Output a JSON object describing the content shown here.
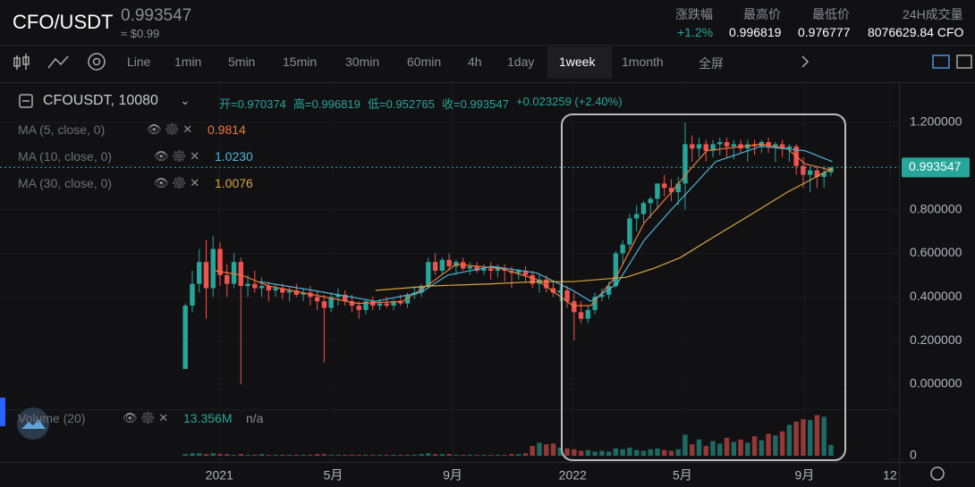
{
  "header": {
    "pair": "CFO/USDT",
    "price": "0.993547",
    "usd": "≈ $0.99",
    "stats": [
      {
        "label": "涨跌幅",
        "value": "+1.2%"
      },
      {
        "label": "最高价",
        "value": "0.996819"
      },
      {
        "label": "最低价",
        "value": "0.976777"
      },
      {
        "label": "24H成交量",
        "value": "8076629.84 CFO"
      }
    ]
  },
  "toolbar": {
    "intervals": [
      "Line",
      "1min",
      "5min",
      "15min",
      "30min",
      "60min",
      "4h",
      "1day",
      "1week",
      "1month",
      "全屏"
    ],
    "active": 8
  },
  "legend": {
    "symbol": "CFOUSDT, 10080",
    "ohlc": [
      "开=0.970374",
      "高=0.996819",
      "低=0.952765",
      "收=0.993547"
    ],
    "change": "+0.023259 (+2.40%)"
  },
  "chart_data": {
    "type": "candlestick",
    "up_color": "#26a69a",
    "down_color": "#ef5350",
    "candles": [
      [
        0.07,
        0.37,
        0.07,
        0.36
      ],
      [
        0.36,
        0.52,
        0.33,
        0.46
      ],
      [
        0.46,
        0.62,
        0.42,
        0.56
      ],
      [
        0.56,
        0.66,
        0.3,
        0.44
      ],
      [
        0.44,
        0.68,
        0.4,
        0.62
      ],
      [
        0.62,
        0.65,
        0.45,
        0.5
      ],
      [
        0.5,
        0.55,
        0.4,
        0.46
      ],
      [
        0.46,
        0.6,
        0.44,
        0.56
      ],
      [
        0.56,
        0.58,
        0.0,
        0.45
      ],
      [
        0.45,
        0.5,
        0.4,
        0.46
      ],
      [
        0.46,
        0.52,
        0.42,
        0.44
      ],
      [
        0.44,
        0.49,
        0.4,
        0.45
      ],
      [
        0.45,
        0.47,
        0.38,
        0.43
      ],
      [
        0.43,
        0.46,
        0.4,
        0.44
      ],
      [
        0.44,
        0.46,
        0.39,
        0.42
      ],
      [
        0.42,
        0.45,
        0.38,
        0.43
      ],
      [
        0.43,
        0.46,
        0.4,
        0.41
      ],
      [
        0.41,
        0.44,
        0.38,
        0.42
      ],
      [
        0.42,
        0.45,
        0.36,
        0.4
      ],
      [
        0.4,
        0.43,
        0.34,
        0.38
      ],
      [
        0.38,
        0.41,
        0.1,
        0.35
      ],
      [
        0.35,
        0.42,
        0.33,
        0.4
      ],
      [
        0.4,
        0.44,
        0.36,
        0.41
      ],
      [
        0.41,
        0.43,
        0.36,
        0.38
      ],
      [
        0.38,
        0.41,
        0.33,
        0.36
      ],
      [
        0.36,
        0.38,
        0.3,
        0.34
      ],
      [
        0.34,
        0.39,
        0.32,
        0.38
      ],
      [
        0.38,
        0.4,
        0.34,
        0.36
      ],
      [
        0.36,
        0.39,
        0.34,
        0.37
      ],
      [
        0.37,
        0.4,
        0.35,
        0.36
      ],
      [
        0.36,
        0.39,
        0.34,
        0.38
      ],
      [
        0.38,
        0.41,
        0.36,
        0.37
      ],
      [
        0.37,
        0.42,
        0.35,
        0.41
      ],
      [
        0.41,
        0.45,
        0.39,
        0.42
      ],
      [
        0.42,
        0.46,
        0.4,
        0.45
      ],
      [
        0.45,
        0.58,
        0.44,
        0.56
      ],
      [
        0.56,
        0.6,
        0.5,
        0.52
      ],
      [
        0.52,
        0.58,
        0.5,
        0.57
      ],
      [
        0.57,
        0.6,
        0.52,
        0.54
      ],
      [
        0.54,
        0.57,
        0.5,
        0.56
      ],
      [
        0.56,
        0.58,
        0.52,
        0.53
      ],
      [
        0.53,
        0.56,
        0.5,
        0.54
      ],
      [
        0.54,
        0.56,
        0.51,
        0.52
      ],
      [
        0.52,
        0.55,
        0.5,
        0.53
      ],
      [
        0.53,
        0.56,
        0.48,
        0.52
      ],
      [
        0.52,
        0.55,
        0.49,
        0.53
      ],
      [
        0.53,
        0.55,
        0.47,
        0.52
      ],
      [
        0.52,
        0.54,
        0.44,
        0.51
      ],
      [
        0.51,
        0.53,
        0.48,
        0.52
      ],
      [
        0.52,
        0.54,
        0.47,
        0.5
      ],
      [
        0.5,
        0.52,
        0.44,
        0.46
      ],
      [
        0.46,
        0.5,
        0.42,
        0.48
      ],
      [
        0.48,
        0.5,
        0.42,
        0.44
      ],
      [
        0.44,
        0.47,
        0.4,
        0.42
      ],
      [
        0.42,
        0.45,
        0.38,
        0.43
      ],
      [
        0.43,
        0.45,
        0.35,
        0.38
      ],
      [
        0.38,
        0.42,
        0.2,
        0.33
      ],
      [
        0.33,
        0.38,
        0.28,
        0.3
      ],
      [
        0.3,
        0.36,
        0.28,
        0.34
      ],
      [
        0.34,
        0.42,
        0.32,
        0.4
      ],
      [
        0.4,
        0.44,
        0.38,
        0.41
      ],
      [
        0.41,
        0.47,
        0.39,
        0.45
      ],
      [
        0.45,
        0.61,
        0.44,
        0.6
      ],
      [
        0.6,
        0.66,
        0.55,
        0.64
      ],
      [
        0.64,
        0.78,
        0.62,
        0.76
      ],
      [
        0.76,
        0.82,
        0.7,
        0.78
      ],
      [
        0.78,
        0.84,
        0.74,
        0.83
      ],
      [
        0.83,
        0.86,
        0.76,
        0.85
      ],
      [
        0.85,
        0.92,
        0.8,
        0.92
      ],
      [
        0.92,
        0.96,
        0.86,
        0.9
      ],
      [
        0.9,
        0.94,
        0.84,
        0.88
      ],
      [
        0.88,
        0.95,
        0.82,
        0.92
      ],
      [
        0.92,
        1.2,
        0.8,
        1.1
      ],
      [
        1.1,
        1.14,
        1.02,
        1.08
      ],
      [
        1.08,
        1.13,
        1.04,
        1.1
      ],
      [
        1.1,
        1.12,
        1.02,
        1.07
      ],
      [
        1.07,
        1.12,
        1.04,
        1.1
      ],
      [
        1.1,
        1.13,
        1.05,
        1.11
      ],
      [
        1.11,
        1.13,
        1.04,
        1.09
      ],
      [
        1.09,
        1.12,
        1.03,
        1.1
      ],
      [
        1.1,
        1.12,
        1.06,
        1.08
      ],
      [
        1.08,
        1.12,
        1.02,
        1.1
      ],
      [
        1.1,
        1.12,
        1.05,
        1.09
      ],
      [
        1.09,
        1.12,
        1.06,
        1.11
      ],
      [
        1.11,
        1.13,
        1.06,
        1.09
      ],
      [
        1.09,
        1.11,
        1.02,
        1.1
      ],
      [
        1.1,
        1.12,
        1.04,
        1.08
      ],
      [
        1.08,
        1.1,
        1.02,
        1.09
      ],
      [
        1.09,
        1.1,
        0.96,
        1.0
      ],
      [
        1.0,
        1.04,
        0.9,
        0.96
      ],
      [
        0.96,
        1.0,
        0.88,
        0.98
      ],
      [
        0.98,
        1.0,
        0.9,
        0.95
      ],
      [
        0.95,
        1.0,
        0.9,
        0.97
      ],
      [
        0.970374,
        0.996819,
        0.952765,
        0.993547
      ]
    ],
    "volumes": [
      2,
      3,
      3,
      2,
      3,
      2,
      2,
      1,
      2,
      1,
      1,
      2,
      1,
      1,
      1,
      1,
      1,
      1,
      1,
      2,
      2,
      1,
      1,
      1,
      1,
      1,
      1,
      1,
      1,
      1,
      1,
      1,
      1,
      1,
      2,
      3,
      2,
      2,
      2,
      1,
      1,
      1,
      1,
      1,
      1,
      1,
      1,
      2,
      2,
      3,
      12,
      16,
      14,
      15,
      10,
      9,
      8,
      6,
      7,
      5,
      6,
      5,
      9,
      8,
      10,
      7,
      6,
      8,
      9,
      7,
      6,
      8,
      26,
      14,
      20,
      12,
      18,
      15,
      22,
      17,
      20,
      16,
      24,
      19,
      27,
      25,
      30,
      38,
      42,
      45,
      44,
      50,
      48,
      13.356
    ],
    "xlim": [
      -26.7,
      102.8
    ],
    "xticks": [
      {
        "value": 4.9,
        "label": "2021"
      },
      {
        "value": 21.3,
        "label": "5月"
      },
      {
        "value": 38.5,
        "label": "9月"
      },
      {
        "value": 55.8,
        "label": "2022"
      },
      {
        "value": 71.6,
        "label": "5月"
      },
      {
        "value": 89.2,
        "label": "9月"
      },
      {
        "value": 101.5,
        "label": "12"
      }
    ],
    "ylim": [
      -0.115,
      1.372
    ],
    "yticks": [
      {
        "value": 1.2,
        "label": "1.200000"
      },
      {
        "value": 1.0,
        "label": "1.000000"
      },
      {
        "value": 0.8,
        "label": "0.800000"
      },
      {
        "value": 0.6,
        "label": "0.600000"
      },
      {
        "value": 0.4,
        "label": "0.400000"
      },
      {
        "value": 0.2,
        "label": "0.200000"
      },
      {
        "value": 0,
        "label": "0.000000"
      }
    ],
    "vlim": [
      0,
      55
    ],
    "vticks": [
      0
    ],
    "last_price": 0.993547,
    "series": [
      {
        "name": "MA (5, close, 0)",
        "current": "0.9814",
        "color": "#f0763c",
        "x": [
          4.3,
          8.1,
          12,
          18.4,
          24.9,
          31.3,
          35.2,
          39,
          45.5,
          50.6,
          55.8,
          58.4,
          62.2,
          66.1,
          70,
          72.6,
          75.1,
          82.9,
          86.7,
          89.3,
          93.2
        ],
        "values": [
          0.52,
          0.5,
          0.45,
          0.41,
          0.37,
          0.38,
          0.46,
          0.55,
          0.53,
          0.48,
          0.36,
          0.36,
          0.5,
          0.74,
          0.88,
          0.98,
          1.07,
          1.1,
          1.08,
          1.01,
          0.98
        ]
      },
      {
        "name": "MA (10, close, 0)",
        "current": "1.0230",
        "color": "#4fb4d8",
        "x": [
          10.7,
          18.4,
          27.4,
          33.9,
          37.8,
          44.2,
          50.6,
          55.8,
          58.4,
          62.2,
          66.1,
          70,
          73.8,
          76.4,
          82.9,
          89.3,
          93.2
        ],
        "values": [
          0.47,
          0.43,
          0.38,
          0.42,
          0.5,
          0.54,
          0.51,
          0.43,
          0.38,
          0.46,
          0.66,
          0.8,
          0.93,
          1.02,
          1.09,
          1.07,
          1.02
        ]
      },
      {
        "name": "MA (30, close, 0)",
        "current": "1.0076",
        "color": "#d9a441",
        "x": [
          27.4,
          35.2,
          44.2,
          50.6,
          55.8,
          63.5,
          67.4,
          71.3,
          76.4,
          81.6,
          86.7,
          93.2
        ],
        "values": [
          0.43,
          0.45,
          0.46,
          0.47,
          0.47,
          0.49,
          0.53,
          0.58,
          0.68,
          0.78,
          0.88,
          0.99
        ]
      }
    ],
    "volume_legend": {
      "name": "Volume (20)",
      "current": "13.356M",
      "extra": "n/a"
    }
  }
}
